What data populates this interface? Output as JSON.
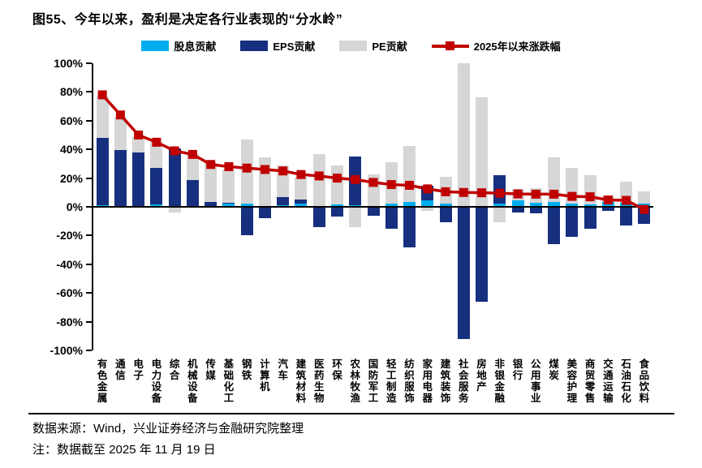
{
  "figure": {
    "title": "图55、今年以来，盈利是决定各行业表现的“分水岭”",
    "source_note": "数据来源：Wind，兴业证券经济与金融研究院整理",
    "date_note": "注：数据截至 2025 年 11 月 19 日"
  },
  "colors": {
    "dividend": "#00AEEF",
    "eps": "#16307F",
    "pe": "#D6D6D6",
    "line": "#C00000",
    "axis": "#000000",
    "background": "#FFFFFF"
  },
  "chart_data": {
    "type": "bar",
    "stacked": true,
    "grid": false,
    "legend_position": "top",
    "ylim": [
      -100,
      100
    ],
    "ytick_step": 20,
    "yticks": [
      100,
      80,
      60,
      40,
      20,
      0,
      -20,
      -40,
      -60,
      -80,
      -100
    ],
    "ytick_labels": [
      "100%",
      "80%",
      "60%",
      "40%",
      "20%",
      "0%",
      "-20%",
      "-40%",
      "-60%",
      "-80%",
      "-100%"
    ],
    "categories": [
      "有色金属",
      "通信",
      "电子",
      "电力设备",
      "综合",
      "机械设备",
      "传媒",
      "基础化工",
      "钢铁",
      "计算机",
      "汽车",
      "建筑材料",
      "医药生物",
      "环保",
      "农林牧渔",
      "国防军工",
      "轻工制造",
      "纺织服饰",
      "家用电器",
      "建筑装饰",
      "社会服务",
      "房地产",
      "非银金融",
      "银行",
      "公用事业",
      "煤炭",
      "美容护理",
      "商贸零售",
      "交通运输",
      "石油石化",
      "食品饮料"
    ],
    "series": [
      {
        "name": "股息贡献",
        "color": "#00AEEF",
        "values": [
          1,
          0.5,
          0.5,
          1.5,
          0.5,
          0.5,
          0.5,
          2.5,
          2,
          0.5,
          1,
          2,
          0.5,
          1.5,
          1,
          0.5,
          2.5,
          3.5,
          4.5,
          2,
          0.5,
          0.5,
          2,
          4.5,
          3,
          3.5,
          2,
          1.5,
          3.5,
          3,
          2.5
        ]
      },
      {
        "name": "EPS贡献",
        "color": "#16307F",
        "values": [
          47,
          39,
          37.5,
          25.5,
          40,
          18,
          3,
          0.5,
          -20,
          -8,
          6,
          3,
          -14,
          -7,
          34,
          -6,
          -15,
          -28,
          10,
          -11,
          -92,
          -66,
          20,
          -4,
          -4.5,
          -26,
          -21,
          -15,
          -3,
          -13,
          -12
        ]
      },
      {
        "name": "PE贡献",
        "color": "#D6D6D6",
        "values": [
          29,
          23,
          11,
          18,
          -4,
          18.5,
          27.5,
          23,
          45,
          34,
          22,
          16,
          36.5,
          27.5,
          -14,
          22,
          28.5,
          39,
          -3,
          19,
          99.5,
          76,
          -11,
          8,
          10,
          31,
          25,
          20.5,
          4.5,
          14.5,
          8
        ]
      }
    ],
    "line_series": {
      "name": "2025年以来涨跌幅",
      "color": "#C00000",
      "marker": "square",
      "values": [
        78,
        64,
        50,
        45,
        39,
        36.5,
        29.5,
        28,
        27,
        26,
        25,
        22.5,
        21.5,
        20,
        19,
        17,
        15.5,
        15,
        12.5,
        10.5,
        10,
        9.8,
        9.5,
        9,
        8.8,
        8.8,
        7.3,
        7,
        4.8,
        4.5,
        -1.8
      ]
    }
  }
}
